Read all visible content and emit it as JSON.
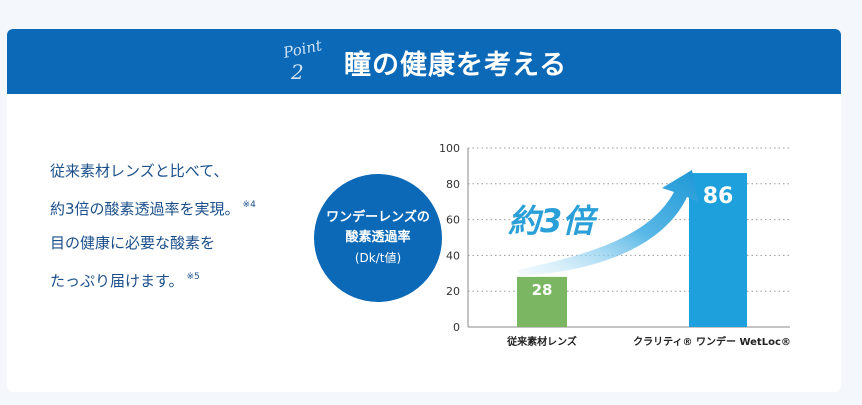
{
  "header": {
    "point_script": "Point",
    "point_number": "2",
    "title": "瞳の健康を考える"
  },
  "body": {
    "lines": [
      {
        "text": "従来素材レンズと比べて、",
        "note": ""
      },
      {
        "text": "約3倍の酸素透過率を実現。",
        "note": "※4"
      },
      {
        "text": "目の健康に必要な酸素を",
        "note": ""
      },
      {
        "text": "たっぷり届けます。",
        "note": "※5"
      }
    ]
  },
  "badge": {
    "line1": "ワンデーレンズの",
    "line2": "酸素透過率",
    "line3": "(Dk/t値)"
  },
  "chart_data": {
    "type": "bar",
    "categories": [
      "従来素材レンズ",
      "クラリティ® ワンデー WetLoc®"
    ],
    "values": [
      28,
      86
    ],
    "value_labels": [
      "28",
      "86"
    ],
    "ylim": [
      0,
      100
    ],
    "yticks": [
      0,
      20,
      40,
      60,
      80,
      100
    ],
    "grid": true,
    "colors": [
      "#7bb662",
      "#1ea0dc"
    ],
    "annotation": "約3倍",
    "xlabel": "",
    "ylabel": ""
  },
  "colors": {
    "header_bg": "#0b69b7",
    "text_blue": "#1a4f8a",
    "bar_conventional": "#7bb662",
    "bar_clarity": "#1ea0dc",
    "arrow": "#2a9fd8"
  }
}
